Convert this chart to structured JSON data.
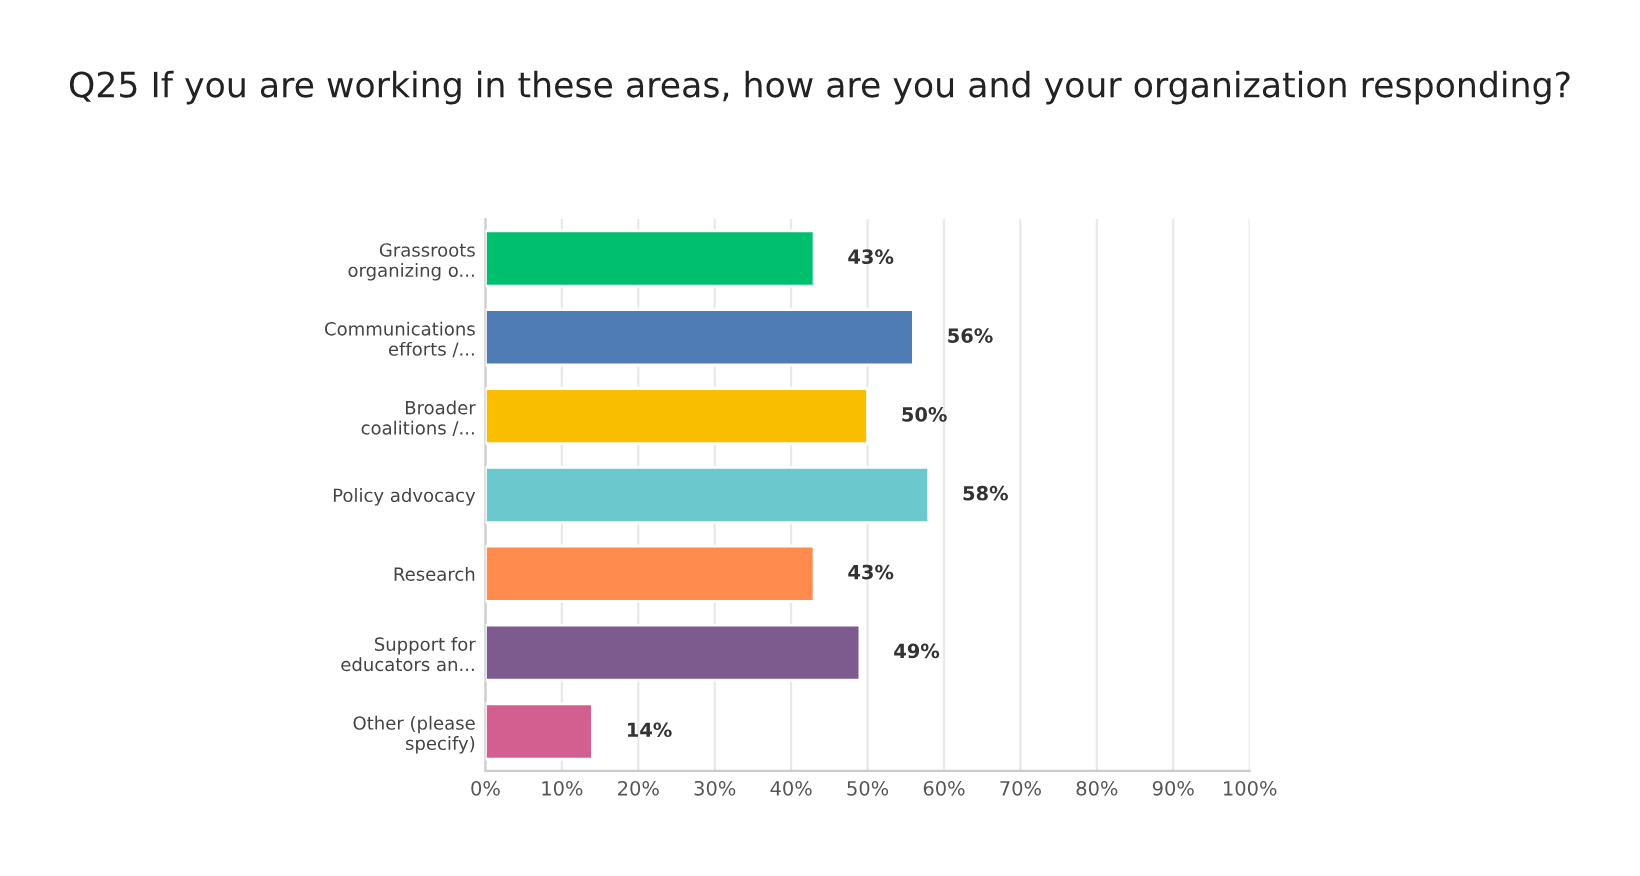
{
  "chart_data": {
    "type": "bar",
    "orientation": "horizontal",
    "title": "Q25 If you are working in these areas, how are you and your organization responding?",
    "categories": [
      "Grassroots\norganizing o...",
      "Communications\nefforts /...",
      "Broader\ncoalitions /...",
      "Policy advocacy",
      "Research",
      "Support for\neducators an...",
      "Other (please\nspecify)"
    ],
    "values": [
      43,
      56,
      50,
      58,
      43,
      49,
      14
    ],
    "value_labels": [
      "43%",
      "56%",
      "50%",
      "58%",
      "43%",
      "49%",
      "14%"
    ],
    "colors": [
      "#00bf6f",
      "#507cb6",
      "#f9be00",
      "#6bc8cd",
      "#ff8b4f",
      "#7d5b8f",
      "#d25f90"
    ],
    "xlim": [
      0,
      100
    ],
    "xticks": [
      {
        "value": 0,
        "label": "0%"
      },
      {
        "value": 10,
        "label": "10%"
      },
      {
        "value": 20,
        "label": "20%"
      },
      {
        "value": 30,
        "label": "30%"
      },
      {
        "value": 40,
        "label": "40%"
      },
      {
        "value": 50,
        "label": "50%"
      },
      {
        "value": 60,
        "label": "60%"
      },
      {
        "value": 70,
        "label": "70%"
      },
      {
        "value": 80,
        "label": "80%"
      },
      {
        "value": 90,
        "label": "90%"
      },
      {
        "value": 100,
        "label": "100%"
      }
    ],
    "grid": "x",
    "legend": false
  }
}
